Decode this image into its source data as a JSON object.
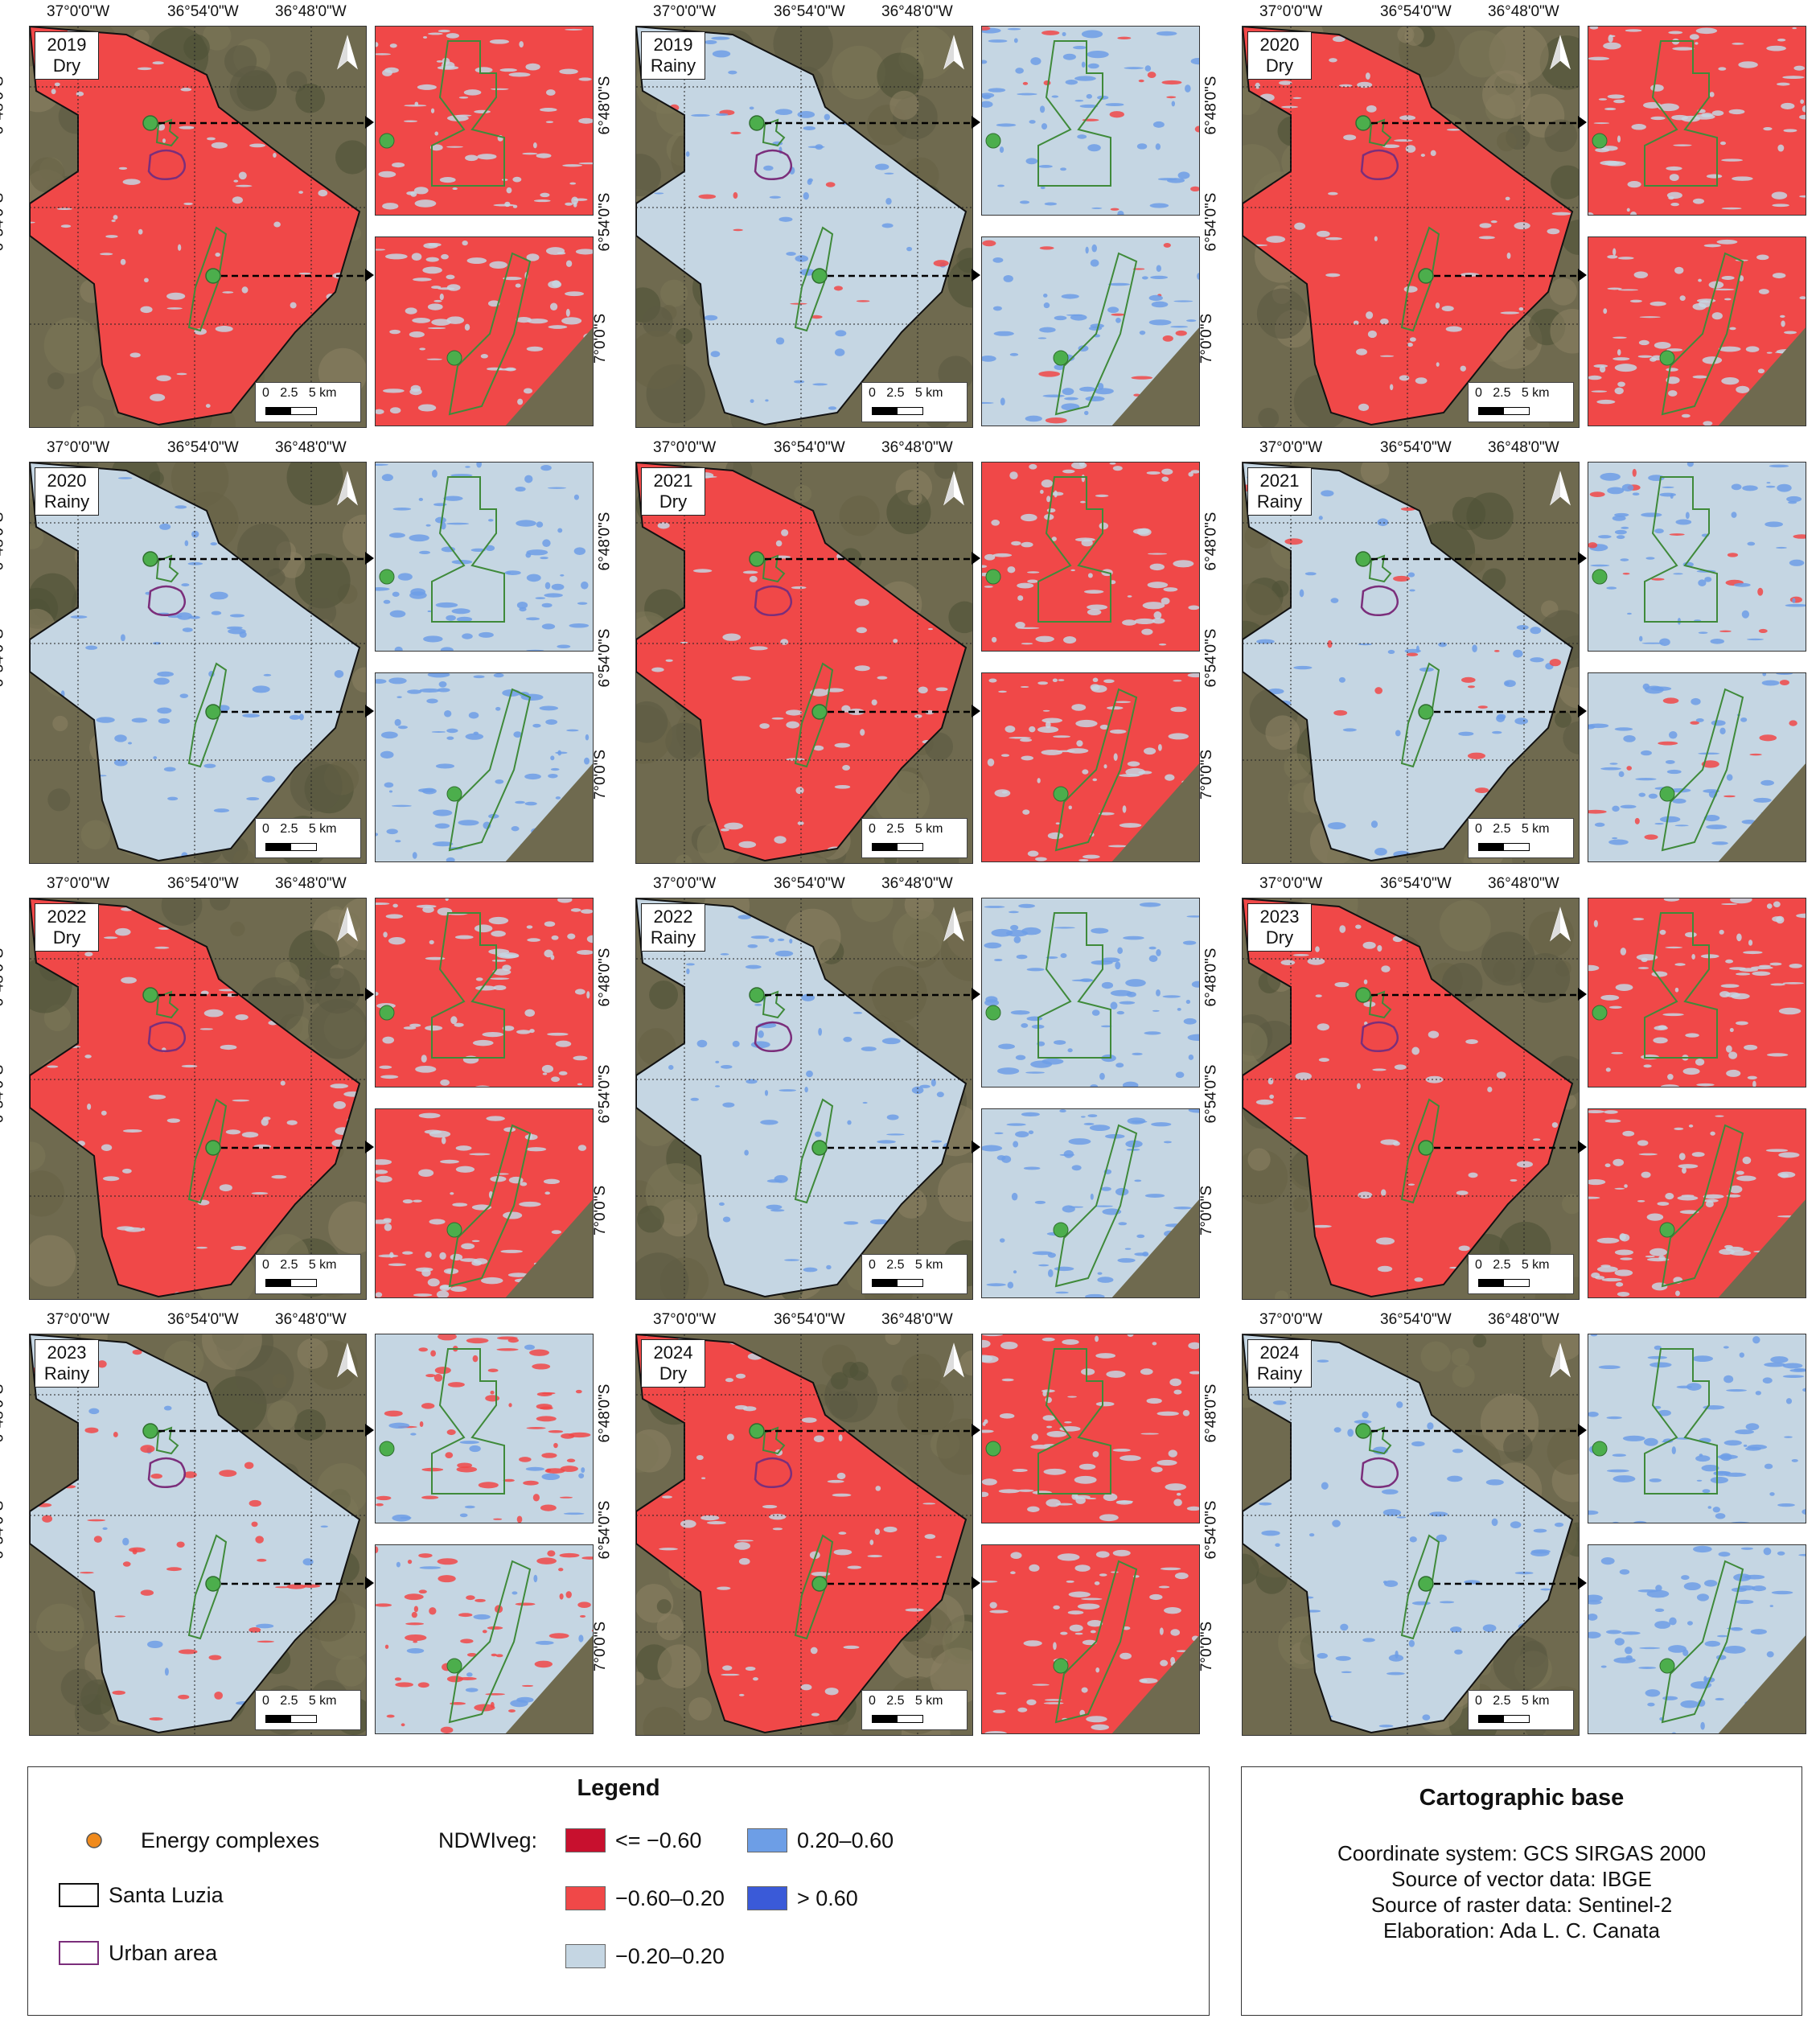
{
  "panels": [
    {
      "year": "2019",
      "season": "Dry",
      "scheme": "dry"
    },
    {
      "year": "2019",
      "season": "Rainy",
      "scheme": "rainy"
    },
    {
      "year": "2020",
      "season": "Dry",
      "scheme": "dry"
    },
    {
      "year": "2020",
      "season": "Rainy",
      "scheme": "rainy2"
    },
    {
      "year": "2021",
      "season": "Dry",
      "scheme": "dry"
    },
    {
      "year": "2021",
      "season": "Rainy",
      "scheme": "rainy"
    },
    {
      "year": "2022",
      "season": "Dry",
      "scheme": "dry"
    },
    {
      "year": "2022",
      "season": "Rainy",
      "scheme": "rainy2"
    },
    {
      "year": "2023",
      "season": "Dry",
      "scheme": "dry"
    },
    {
      "year": "2023",
      "season": "Rainy",
      "scheme": "mixed"
    },
    {
      "year": "2024",
      "season": "Dry",
      "scheme": "dry"
    },
    {
      "year": "2024",
      "season": "Rainy",
      "scheme": "rainy2"
    }
  ],
  "axes": {
    "lon_ticks": [
      "37°0'0\"W",
      "36°54'0\"W",
      "36°48'0\"W"
    ],
    "lat_ticks": [
      "6°48'0\"S",
      "6°54'0\"S",
      "7°0'0\"S"
    ]
  },
  "scalebar": {
    "label": "0   2.5   5 km"
  },
  "colors": {
    "ndwi_lt_m060": "#c8102e",
    "ndwi_m060_m020": "#f04848",
    "ndwi_m020_020": "#c5d6e3",
    "ndwi_020_060": "#6d9ee6",
    "ndwi_gt_060": "#3a5ad8",
    "satellite": "#6f6a4f",
    "energy_complex": "#f08a1c",
    "complex_outline": "#3f8a3a",
    "urban_outline": "#7b2e7b"
  },
  "legend": {
    "title": "Legend",
    "energy": "Energy complexes",
    "santa_luzia": "Santa Luzia",
    "urban": "Urban area",
    "ndwi_label": "NDWIveg:",
    "classes": {
      "c1": "<= −0.60",
      "c2": "−0.60–0.20",
      "c3": "−0.20–0.20",
      "c4": "0.20–0.60",
      "c5": "> 0.60"
    }
  },
  "carto": {
    "title": "Cartographic base",
    "lines": [
      "Coordinate system: GCS SIRGAS 2000",
      "Source of vector data: IBGE",
      "Source of raster data: Sentinel-2",
      "Elaboration: Ada L. C. Canata"
    ]
  }
}
